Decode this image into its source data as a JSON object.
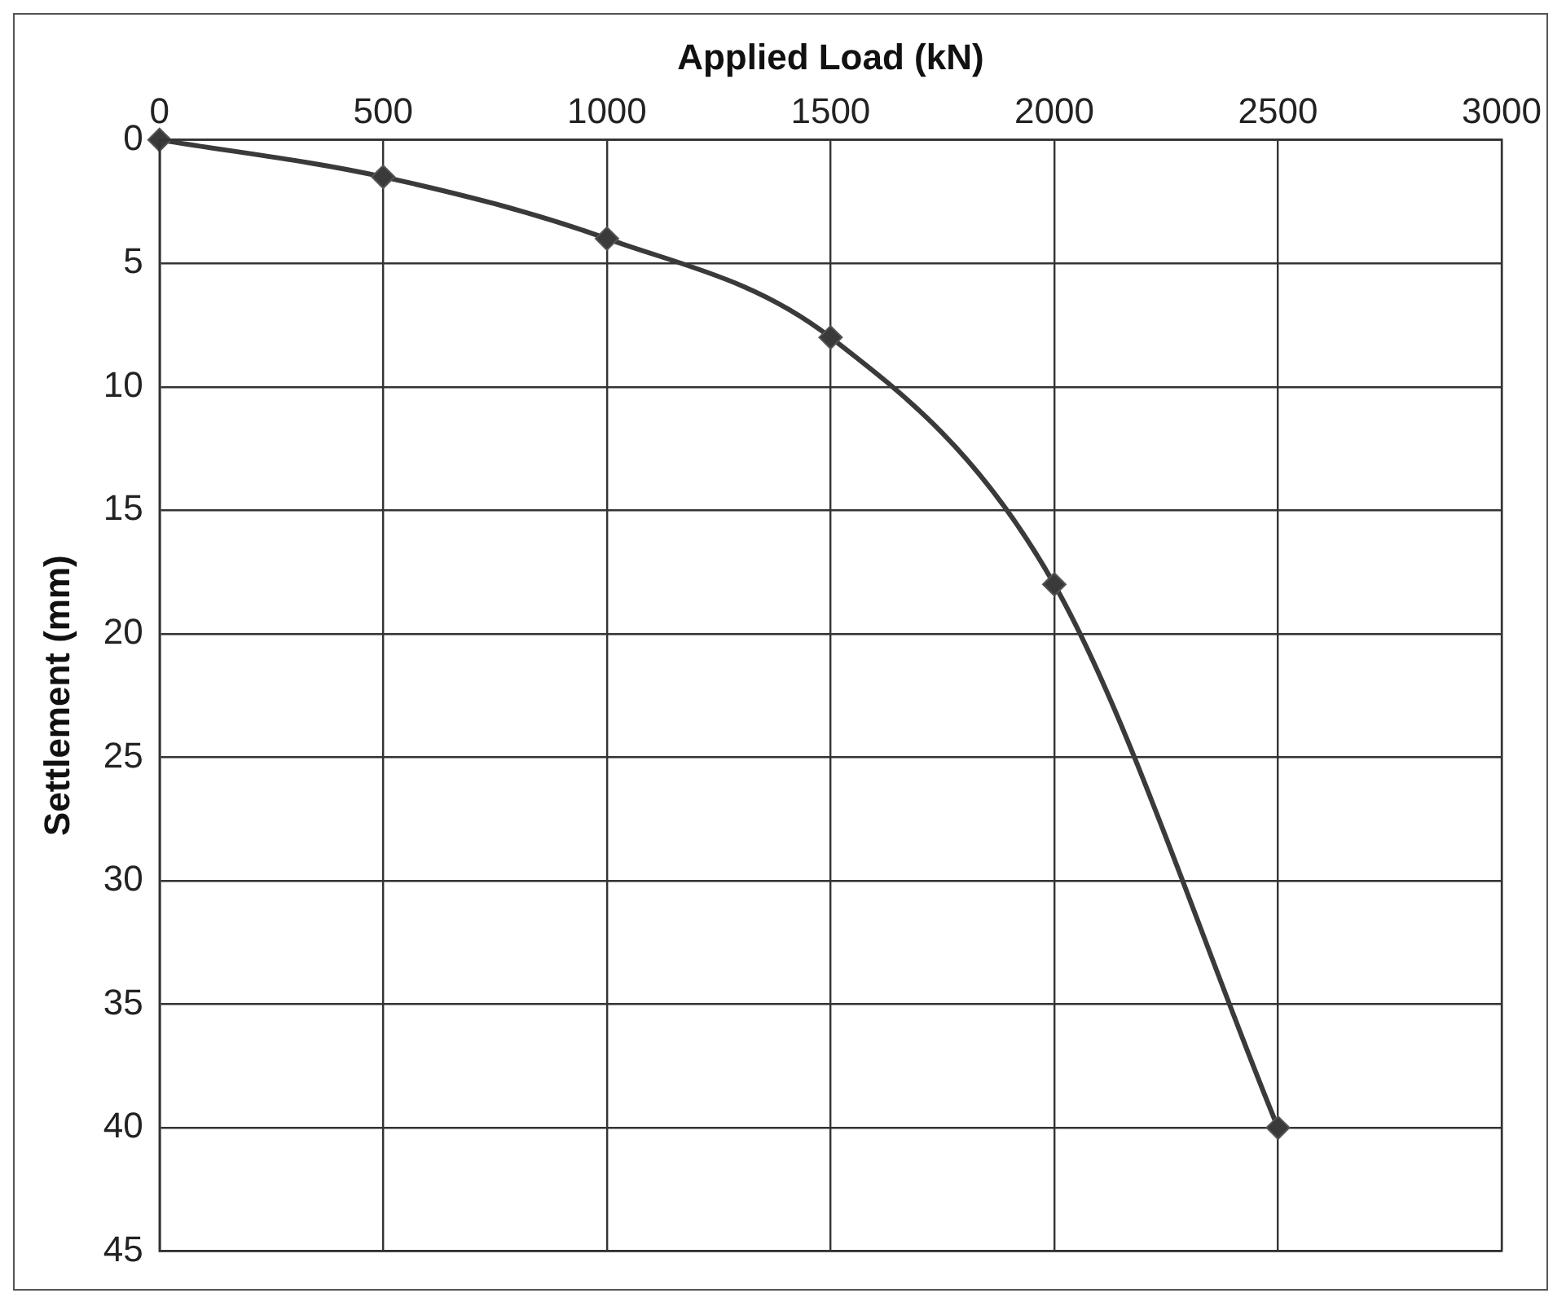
{
  "chart_data": {
    "type": "line",
    "xlabel": "Applied Load (kN)",
    "ylabel": "Settlement (mm)",
    "x": [
      0,
      500,
      1000,
      1500,
      2000,
      2500
    ],
    "series": [
      {
        "color": "#3a3a3a",
        "values": [
          0,
          1.5,
          4,
          8,
          18,
          40
        ]
      }
    ],
    "xlim": [
      0,
      3000
    ],
    "xticks": [
      0,
      500,
      1000,
      1500,
      2000,
      2500,
      3000
    ],
    "ylim": [
      45,
      0
    ],
    "yticks": [
      0,
      5,
      10,
      15,
      20,
      25,
      30,
      35,
      40,
      45
    ],
    "grid": true,
    "legend": false,
    "marker": "diamond",
    "line_style": "solid"
  }
}
